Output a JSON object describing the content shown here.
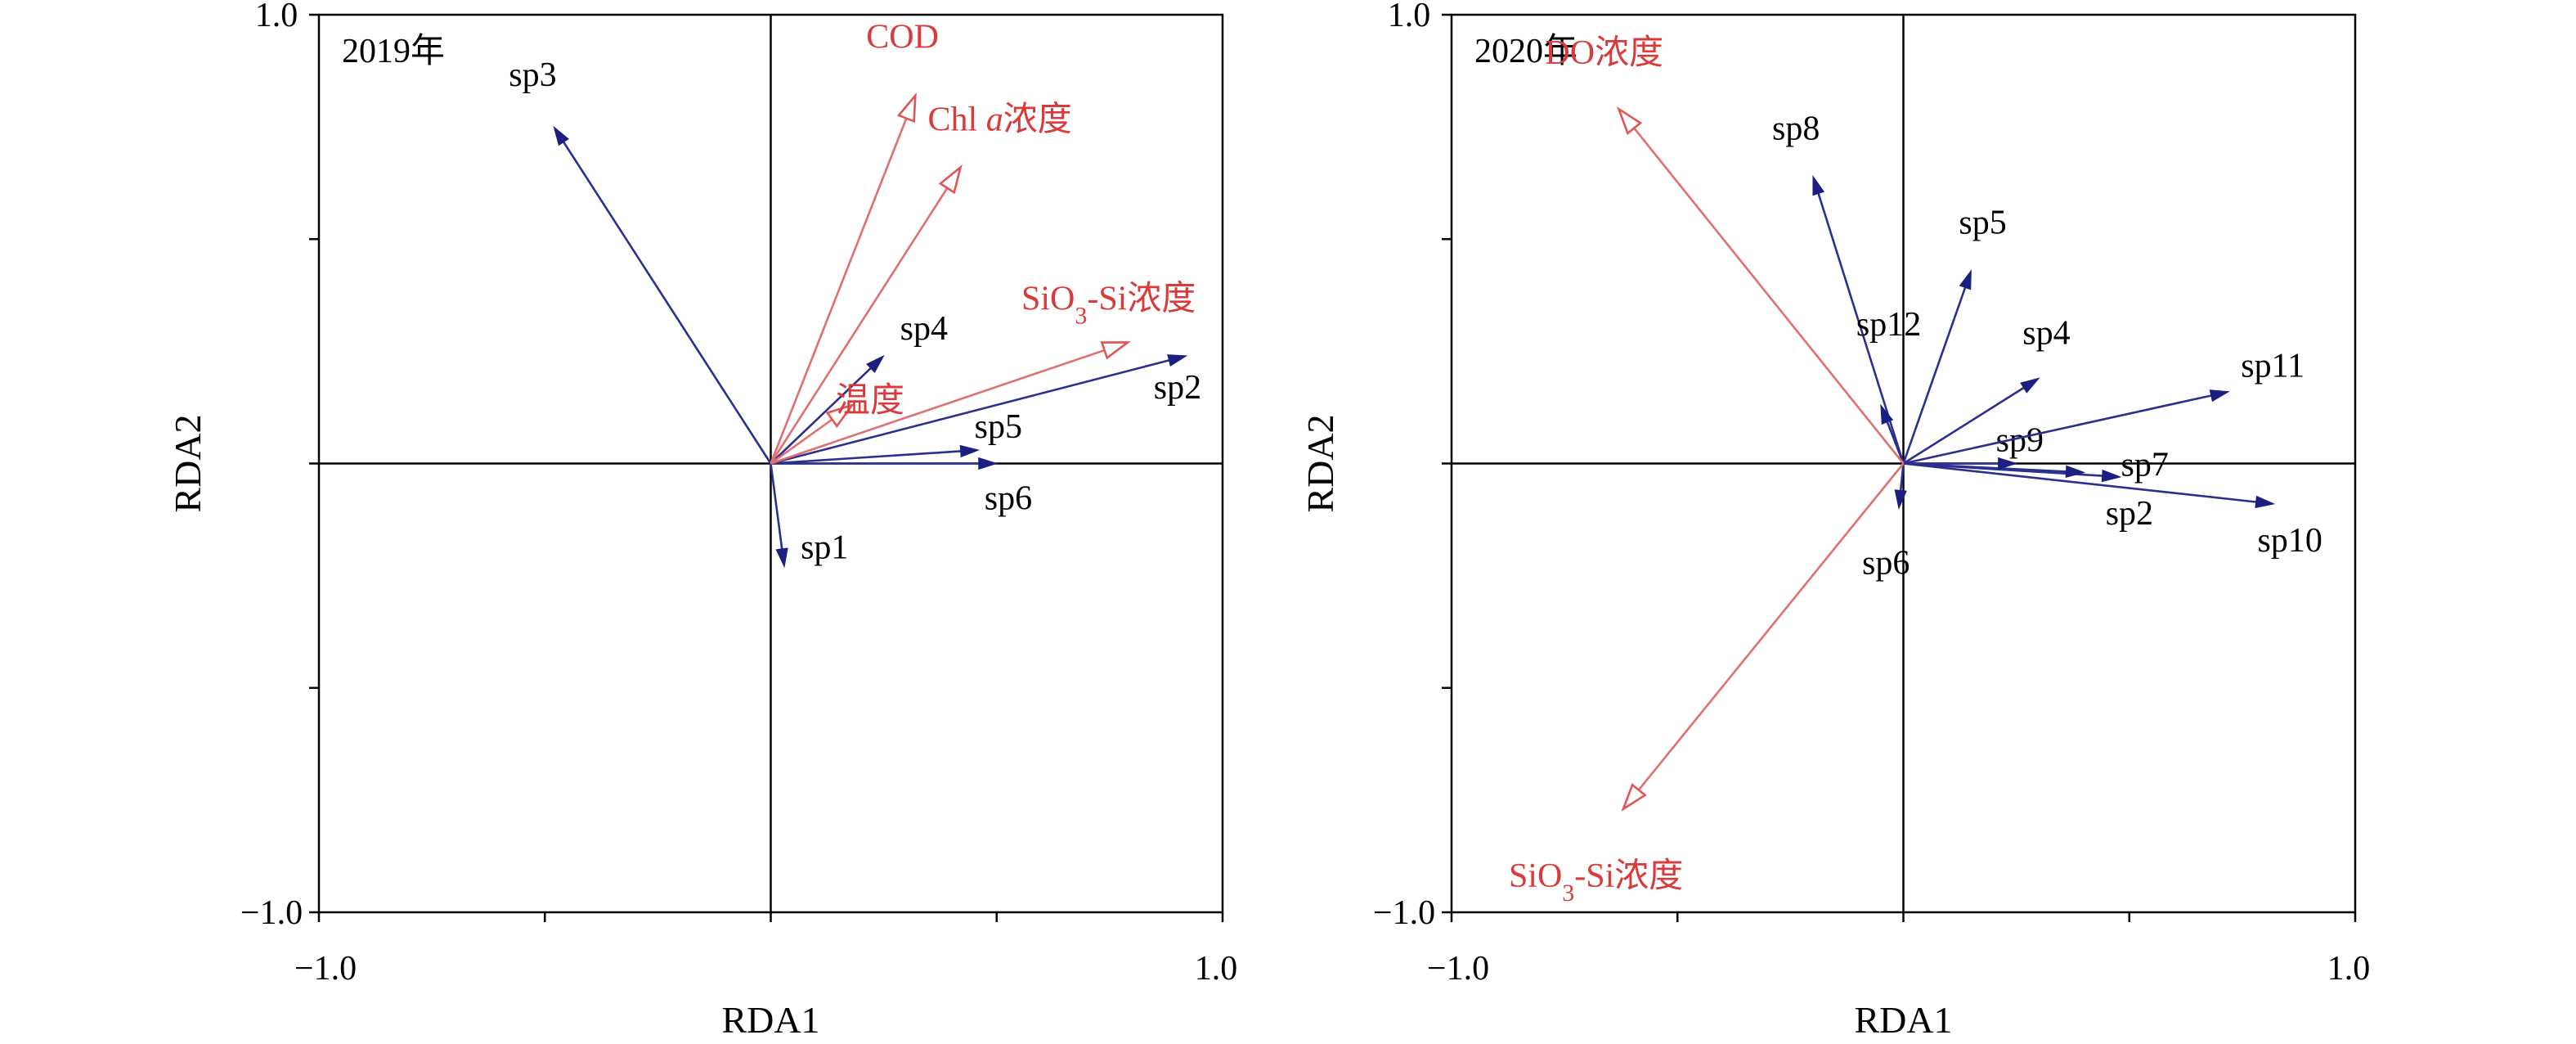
{
  "chart_data": [
    {
      "type": "scatter",
      "title": "2019年",
      "xlabel": "RDA1",
      "ylabel": "RDA2",
      "xlim": [
        -1.0,
        1.0
      ],
      "ylim": [
        -1.0,
        1.0
      ],
      "x_tick_labels": [
        "−1.0",
        "1.0"
      ],
      "y_tick_labels": [
        "1.0",
        "−1.0"
      ],
      "minor_ticks": [
        -0.5,
        0.5
      ],
      "species": [
        {
          "name": "sp1",
          "x": 0.03,
          "y": -0.23
        },
        {
          "name": "sp2",
          "x": 0.92,
          "y": 0.24
        },
        {
          "name": "sp3",
          "x": -0.48,
          "y": 0.75
        },
        {
          "name": "sp4",
          "x": 0.25,
          "y": 0.24
        },
        {
          "name": "sp5",
          "x": 0.46,
          "y": 0.03
        },
        {
          "name": "sp6",
          "x": 0.5,
          "y": 0.0
        }
      ],
      "environment": [
        {
          "name": "COD",
          "x": 0.32,
          "y": 0.82
        },
        {
          "name": "Chl a浓度",
          "x": 0.42,
          "y": 0.66
        },
        {
          "name": "SiO3-Si浓度",
          "x": 0.79,
          "y": 0.27
        },
        {
          "name": "温度",
          "x": 0.18,
          "y": 0.13
        }
      ]
    },
    {
      "type": "scatter",
      "title": "2020年",
      "xlabel": "RDA1",
      "ylabel": "RDA2",
      "xlim": [
        -1.0,
        1.0
      ],
      "ylim": [
        -1.0,
        1.0
      ],
      "x_tick_labels": [
        "−1.0",
        "1.0"
      ],
      "y_tick_labels": [
        "1.0",
        "−1.0"
      ],
      "minor_ticks": [
        -0.5,
        0.5
      ],
      "species": [
        {
          "name": "sp2",
          "x": 0.48,
          "y": -0.03
        },
        {
          "name": "sp4",
          "x": 0.3,
          "y": 0.19
        },
        {
          "name": "sp5",
          "x": 0.15,
          "y": 0.43
        },
        {
          "name": "sp6",
          "x": -0.01,
          "y": -0.1
        },
        {
          "name": "sp7",
          "x": 0.4,
          "y": -0.02
        },
        {
          "name": "sp8",
          "x": -0.2,
          "y": 0.64
        },
        {
          "name": "sp9",
          "x": 0.25,
          "y": 0.0
        },
        {
          "name": "sp10",
          "x": 0.82,
          "y": -0.09
        },
        {
          "name": "sp11",
          "x": 0.72,
          "y": 0.16
        },
        {
          "name": "sp12",
          "x": -0.05,
          "y": 0.13
        }
      ],
      "environment": [
        {
          "name": "DO浓度",
          "x": -0.63,
          "y": 0.79
        },
        {
          "name": "SiO3-Si浓度",
          "x": -0.62,
          "y": -0.77
        }
      ]
    }
  ]
}
